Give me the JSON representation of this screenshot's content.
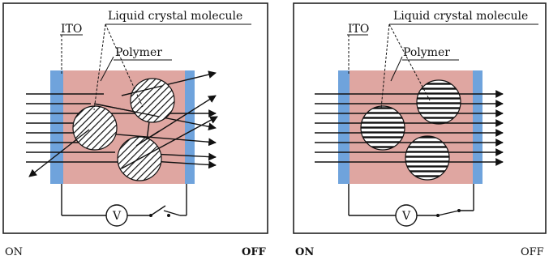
{
  "panels": [
    {
      "id": "left",
      "labels": {
        "lc_molecule": "Liquid crystal molecule",
        "ito": "ITO",
        "polymer": "Polymer",
        "voltmeter": "V"
      },
      "bottom_left": "ON",
      "bottom_right": "OFF",
      "bottom_right_bold": true,
      "bottom_left_bold": false,
      "switch_state": "open"
    },
    {
      "id": "right",
      "labels": {
        "lc_molecule": "Liquid crystal molecule",
        "ito": "ITO",
        "polymer": "Polymer",
        "voltmeter": "V"
      },
      "bottom_left": "ON",
      "bottom_right": "OFF",
      "bottom_left_bold": true,
      "bottom_right_bold": false,
      "switch_state": "closed"
    }
  ],
  "colors": {
    "polymer_fill": "#dfa6a1",
    "ito_fill": "#6fa3dc",
    "ito_dark": "#4a82c8",
    "frame": "#222222",
    "ray": "#111111"
  }
}
